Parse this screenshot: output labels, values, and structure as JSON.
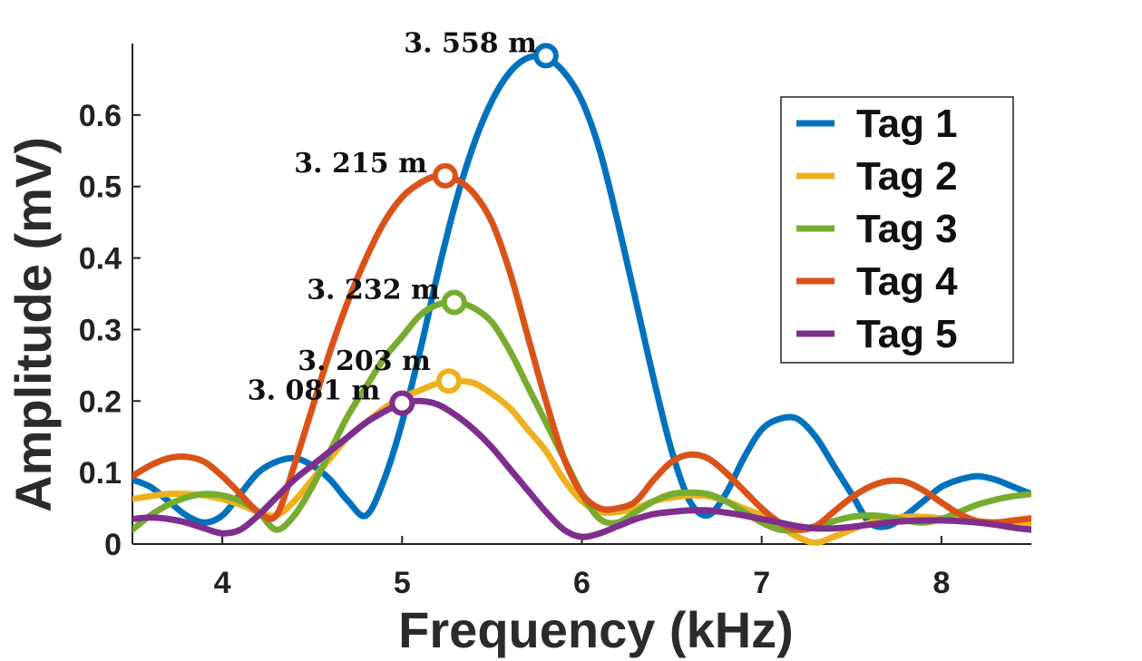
{
  "chart_data": {
    "type": "line",
    "title": "",
    "xlabel": "Frequency (kHz)",
    "ylabel": "Amplitude (mV)",
    "xlim": [
      3.5,
      8.5
    ],
    "ylim": [
      0,
      0.7
    ],
    "xticks": [
      4,
      5,
      6,
      7,
      8
    ],
    "xtick_labels": [
      "4",
      "5",
      "6",
      "7",
      "8"
    ],
    "yticks": [
      0,
      0.1,
      0.2,
      0.3,
      0.4,
      0.5,
      0.6
    ],
    "ytick_labels": [
      "0",
      "0.1",
      "0.2",
      "0.3",
      "0.4",
      "0.5",
      "0.6"
    ],
    "legend_position": "top-right",
    "series": [
      {
        "name": "Tag 1",
        "color": "#0072BD",
        "x": [
          3.5,
          3.6,
          3.7,
          3.8,
          3.9,
          4.0,
          4.1,
          4.2,
          4.3,
          4.4,
          4.5,
          4.6,
          4.7,
          4.8,
          4.9,
          5.0,
          5.1,
          5.2,
          5.3,
          5.4,
          5.5,
          5.6,
          5.7,
          5.8,
          5.9,
          6.0,
          6.1,
          6.2,
          6.3,
          6.4,
          6.5,
          6.6,
          6.7,
          6.8,
          6.9,
          7.0,
          7.1,
          7.2,
          7.3,
          7.4,
          7.5,
          7.6,
          7.7,
          7.8,
          7.9,
          8.0,
          8.1,
          8.2,
          8.3,
          8.4,
          8.5
        ],
        "values": [
          0.09,
          0.08,
          0.06,
          0.04,
          0.03,
          0.04,
          0.07,
          0.1,
          0.115,
          0.12,
          0.11,
          0.09,
          0.06,
          0.04,
          0.09,
          0.17,
          0.27,
          0.38,
          0.48,
          0.56,
          0.62,
          0.66,
          0.68,
          0.68,
          0.66,
          0.62,
          0.55,
          0.45,
          0.34,
          0.23,
          0.13,
          0.06,
          0.04,
          0.07,
          0.12,
          0.16,
          0.175,
          0.175,
          0.15,
          0.11,
          0.07,
          0.03,
          0.025,
          0.04,
          0.06,
          0.08,
          0.09,
          0.095,
          0.09,
          0.08,
          0.07
        ],
        "peak": {
          "x": 5.8,
          "y": 0.683,
          "label": "3. 558 m"
        }
      },
      {
        "name": "Tag 2",
        "color": "#EDB120",
        "x": [
          3.5,
          3.6,
          3.7,
          3.8,
          3.9,
          4.0,
          4.1,
          4.2,
          4.3,
          4.4,
          4.5,
          4.6,
          4.7,
          4.8,
          4.9,
          5.0,
          5.1,
          5.2,
          5.3,
          5.4,
          5.5,
          5.6,
          5.7,
          5.8,
          5.9,
          6.0,
          6.1,
          6.2,
          6.3,
          6.4,
          6.5,
          6.6,
          6.7,
          6.8,
          6.9,
          7.0,
          7.1,
          7.2,
          7.3,
          7.4,
          7.5,
          7.6,
          7.7,
          7.8,
          7.9,
          8.0,
          8.1,
          8.2,
          8.3,
          8.4,
          8.5
        ],
        "values": [
          0.063,
          0.067,
          0.07,
          0.07,
          0.068,
          0.063,
          0.055,
          0.045,
          0.04,
          0.06,
          0.09,
          0.12,
          0.15,
          0.17,
          0.19,
          0.205,
          0.215,
          0.225,
          0.228,
          0.225,
          0.21,
          0.19,
          0.16,
          0.13,
          0.09,
          0.06,
          0.045,
          0.045,
          0.05,
          0.06,
          0.065,
          0.068,
          0.067,
          0.06,
          0.05,
          0.04,
          0.025,
          0.01,
          0.002,
          0.01,
          0.02,
          0.03,
          0.035,
          0.038,
          0.038,
          0.036,
          0.034,
          0.032,
          0.03,
          0.028,
          0.027
        ],
        "peak": {
          "x": 5.26,
          "y": 0.228,
          "label": "3. 203 m"
        }
      },
      {
        "name": "Tag 3",
        "color": "#77AC30",
        "x": [
          3.5,
          3.6,
          3.7,
          3.8,
          3.9,
          4.0,
          4.1,
          4.2,
          4.3,
          4.4,
          4.5,
          4.6,
          4.7,
          4.8,
          4.9,
          5.0,
          5.1,
          5.2,
          5.3,
          5.4,
          5.5,
          5.6,
          5.7,
          5.8,
          5.9,
          6.0,
          6.1,
          6.2,
          6.3,
          6.4,
          6.5,
          6.6,
          6.7,
          6.8,
          6.9,
          7.0,
          7.1,
          7.2,
          7.3,
          7.4,
          7.5,
          7.6,
          7.7,
          7.8,
          7.9,
          8.0,
          8.1,
          8.2,
          8.3,
          8.4,
          8.5
        ],
        "values": [
          0.02,
          0.04,
          0.055,
          0.065,
          0.07,
          0.068,
          0.06,
          0.045,
          0.02,
          0.04,
          0.08,
          0.13,
          0.18,
          0.22,
          0.26,
          0.29,
          0.32,
          0.335,
          0.338,
          0.33,
          0.31,
          0.27,
          0.22,
          0.17,
          0.12,
          0.07,
          0.035,
          0.03,
          0.045,
          0.06,
          0.07,
          0.072,
          0.07,
          0.06,
          0.045,
          0.03,
          0.02,
          0.02,
          0.025,
          0.032,
          0.038,
          0.04,
          0.038,
          0.033,
          0.03,
          0.035,
          0.045,
          0.055,
          0.062,
          0.067,
          0.07
        ],
        "peak": {
          "x": 5.29,
          "y": 0.338,
          "label": "3. 232 m"
        }
      },
      {
        "name": "Tag 4",
        "color": "#D95319",
        "x": [
          3.5,
          3.6,
          3.7,
          3.8,
          3.9,
          4.0,
          4.1,
          4.2,
          4.3,
          4.4,
          4.5,
          4.6,
          4.7,
          4.8,
          4.9,
          5.0,
          5.1,
          5.2,
          5.3,
          5.4,
          5.5,
          5.6,
          5.7,
          5.8,
          5.9,
          6.0,
          6.1,
          6.2,
          6.3,
          6.4,
          6.5,
          6.6,
          6.7,
          6.8,
          6.9,
          7.0,
          7.1,
          7.2,
          7.3,
          7.4,
          7.5,
          7.6,
          7.7,
          7.8,
          7.9,
          8.0,
          8.1,
          8.2,
          8.3,
          8.4,
          8.5
        ],
        "values": [
          0.095,
          0.11,
          0.12,
          0.122,
          0.115,
          0.095,
          0.07,
          0.045,
          0.04,
          0.11,
          0.19,
          0.27,
          0.34,
          0.4,
          0.45,
          0.485,
          0.505,
          0.515,
          0.51,
          0.49,
          0.45,
          0.38,
          0.29,
          0.2,
          0.12,
          0.07,
          0.05,
          0.05,
          0.06,
          0.09,
          0.115,
          0.125,
          0.12,
          0.1,
          0.075,
          0.05,
          0.03,
          0.02,
          0.025,
          0.045,
          0.065,
          0.08,
          0.088,
          0.087,
          0.075,
          0.058,
          0.042,
          0.032,
          0.03,
          0.033,
          0.036
        ],
        "peak": {
          "x": 5.24,
          "y": 0.515,
          "label": "3. 215 m"
        }
      },
      {
        "name": "Tag 5",
        "color": "#7E2F8E",
        "x": [
          3.5,
          3.6,
          3.7,
          3.8,
          3.9,
          4.0,
          4.1,
          4.2,
          4.3,
          4.4,
          4.5,
          4.6,
          4.7,
          4.8,
          4.9,
          5.0,
          5.1,
          5.2,
          5.3,
          5.4,
          5.5,
          5.6,
          5.7,
          5.8,
          5.9,
          6.0,
          6.1,
          6.2,
          6.3,
          6.4,
          6.5,
          6.6,
          6.7,
          6.8,
          6.9,
          7.0,
          7.1,
          7.2,
          7.3,
          7.4,
          7.5,
          7.6,
          7.7,
          7.8,
          7.9,
          8.0,
          8.1,
          8.2,
          8.3,
          8.4,
          8.5
        ],
        "values": [
          0.035,
          0.037,
          0.035,
          0.03,
          0.022,
          0.015,
          0.02,
          0.04,
          0.065,
          0.09,
          0.11,
          0.13,
          0.15,
          0.17,
          0.185,
          0.197,
          0.2,
          0.195,
          0.18,
          0.16,
          0.135,
          0.105,
          0.075,
          0.045,
          0.02,
          0.01,
          0.015,
          0.025,
          0.035,
          0.042,
          0.045,
          0.047,
          0.047,
          0.044,
          0.04,
          0.035,
          0.03,
          0.025,
          0.022,
          0.022,
          0.024,
          0.027,
          0.03,
          0.032,
          0.033,
          0.033,
          0.032,
          0.03,
          0.027,
          0.023,
          0.02
        ],
        "peak": {
          "x": 5.0,
          "y": 0.197,
          "label": "3. 081 m"
        }
      }
    ]
  }
}
